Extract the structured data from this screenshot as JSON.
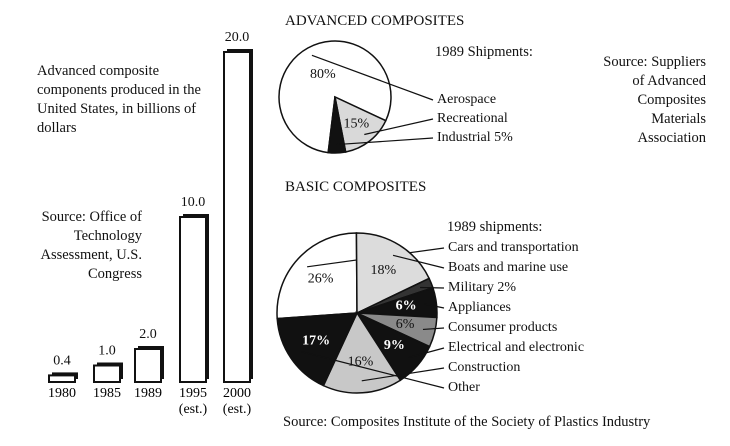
{
  "chart_data": [
    {
      "type": "bar",
      "title": "Advanced composite components produced in the United States, in billions of dollars",
      "source": "Source: Office of Technology Assessment, U.S. Congress",
      "categories": [
        "1980",
        "1985",
        "1989",
        "1995 (est.)",
        "2000 (est.)"
      ],
      "values": [
        0.4,
        1.0,
        2.0,
        10.0,
        20.0
      ],
      "value_labels": [
        "0.4",
        "1.0",
        "2.0",
        "10.0",
        "20.0"
      ],
      "color": "#ffffff"
    },
    {
      "type": "pie",
      "title": "ADVANCED COMPOSITES",
      "subtitle": "1989 Shipments:",
      "source": "Source: Suppliers of Advanced Composites Materials Association",
      "categories": [
        "Aerospace",
        "Recreational",
        "Industrial 5%"
      ],
      "values": [
        80,
        15,
        5
      ],
      "value_labels": [
        "80%",
        "15%",
        null
      ],
      "colors": [
        "#ffffff",
        "#d9d9d9",
        "#111111"
      ]
    },
    {
      "type": "pie",
      "title": "BASIC COMPOSITES",
      "subtitle": "1989 shipments:",
      "source": "Source: Composites Institute of the  Society of Plastics Industry",
      "categories": [
        "Cars and transportation",
        "Boats and marine use",
        "Military 2%",
        "Appliances",
        "Consumer products",
        "Electrical and electronic",
        "Construction",
        "Other"
      ],
      "values": [
        26,
        18,
        2,
        6,
        6,
        9,
        16,
        17
      ],
      "value_labels": [
        "26%",
        "18%",
        null,
        "6%",
        "6%",
        "9%",
        "16%",
        "17%"
      ],
      "colors": [
        "#ffffff",
        "#dcdcdc",
        "#333333",
        "#111111",
        "#8a8a8a",
        "#111111",
        "#c8c8c8",
        "#111111"
      ]
    }
  ]
}
